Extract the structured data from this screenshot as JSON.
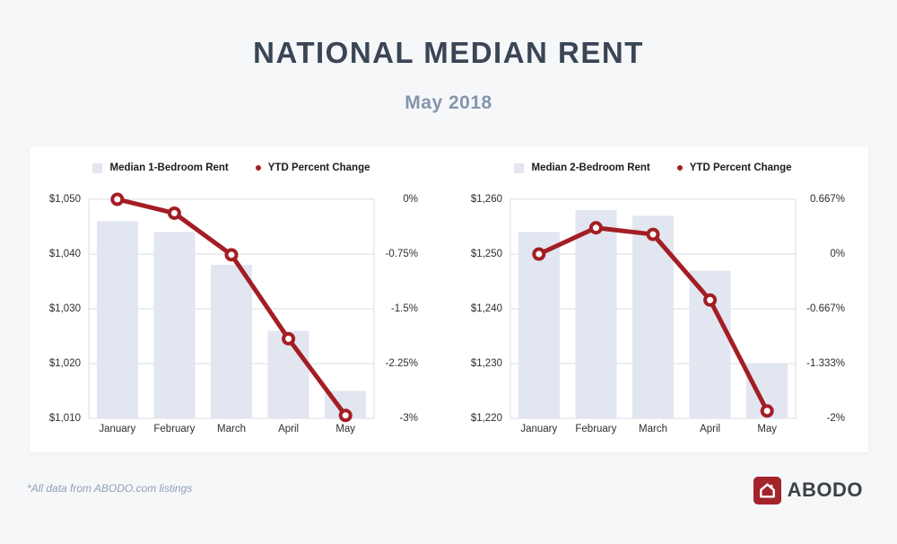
{
  "header": {
    "title": "NATIONAL MEDIAN RENT",
    "subtitle": "May 2018"
  },
  "footer": {
    "note": "*All data from ABODO.com listings",
    "logo_text": "ABODO"
  },
  "colors": {
    "page_bg": "#f6f7f9",
    "card_bg": "#ffffff",
    "title": "#3a4656",
    "subtitle": "#8496ac",
    "bar_fill": "#e2e6f1",
    "line_red": "#a31e24",
    "grid": "#d9dce1",
    "axis_text": "#2e2e2e",
    "footnote": "#90a0b5",
    "logo_red": "#a3242b",
    "logo_text": "#3e4144"
  },
  "chart_data": [
    {
      "type": "bar",
      "subtype": "bar+line-combo",
      "categories": [
        "January",
        "February",
        "March",
        "April",
        "May"
      ],
      "series": [
        {
          "name": "Median 1-Bedroom Rent",
          "type": "bar",
          "axis": "left",
          "values": [
            1046,
            1044,
            1038,
            1026,
            1015
          ]
        },
        {
          "name": "YTD Percent Change",
          "type": "line",
          "axis": "right",
          "values": [
            0,
            -0.19,
            -0.76,
            -1.91,
            -2.96
          ]
        }
      ],
      "left_axis": {
        "min": 1010,
        "max": 1050,
        "ticks": [
          "$1,050",
          "$1,040",
          "$1,030",
          "$1,020",
          "$1,010"
        ]
      },
      "right_axis": {
        "min": -3,
        "max": 0,
        "ticks": [
          "0%",
          "-0.75%",
          "-1.5%",
          "-2.25%",
          "-3%"
        ]
      },
      "grid": true,
      "legend_position": "top"
    },
    {
      "type": "bar",
      "subtype": "bar+line-combo",
      "categories": [
        "January",
        "February",
        "March",
        "April",
        "May"
      ],
      "series": [
        {
          "name": "Median 2-Bedroom Rent",
          "type": "bar",
          "axis": "left",
          "values": [
            1254,
            1258,
            1257,
            1247,
            1230
          ]
        },
        {
          "name": "YTD Percent Change",
          "type": "line",
          "axis": "right",
          "values": [
            0,
            0.32,
            0.24,
            -0.56,
            -1.91
          ]
        }
      ],
      "left_axis": {
        "min": 1220,
        "max": 1260,
        "ticks": [
          "$1,260",
          "$1,250",
          "$1,240",
          "$1,230",
          "$1,220"
        ]
      },
      "right_axis": {
        "min": -2,
        "max": 0.667,
        "ticks": [
          "0.667%",
          "0%",
          "-0.667%",
          "-1.333%",
          "-2%"
        ]
      },
      "grid": true,
      "legend_position": "top"
    }
  ]
}
